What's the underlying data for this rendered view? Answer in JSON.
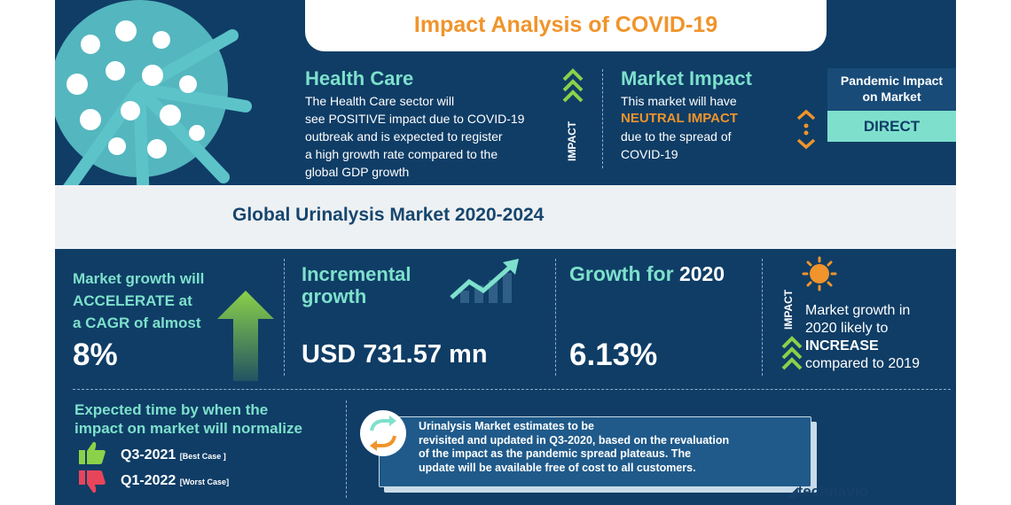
{
  "header": {
    "title": "Impact Analysis of COVID-19"
  },
  "health_care": {
    "title": "Health Care",
    "lines": [
      "The Health Care sector will",
      "see POSITIVE impact due to COVID-19",
      "outbreak and is expected to register",
      "a high growth rate compared to the",
      "global GDP growth"
    ]
  },
  "impact_label": "IMPACT",
  "market_impact": {
    "title": "Market Impact",
    "line1": "This market will have",
    "highlight": "NEUTRAL IMPACT",
    "line3": "due to the spread of",
    "line4": "COVID-19"
  },
  "pandemic": {
    "title_line1": "Pandemic Impact",
    "title_line2": "on Market",
    "value": "DIRECT"
  },
  "band": {
    "title": "Global Urinalysis Market 2020-2024"
  },
  "cagr": {
    "line1": "Market growth will",
    "line2": "ACCELERATE at",
    "line3": "a CAGR of almost",
    "value": "8%"
  },
  "incremental": {
    "line1": "Incremental",
    "line2": "growth",
    "value": "USD 731.57 mn"
  },
  "growth2020": {
    "label": "Growth for ",
    "year": "2020",
    "value": "6.13%"
  },
  "impact2": {
    "label": "IMPACT",
    "line1": "Market growth in",
    "line2": "2020 likely to",
    "highlight": "INCREASE",
    "line4": "compared to 2019"
  },
  "normalize": {
    "line1": "Expected time by when the",
    "line2": "impact on market will normalize",
    "best": {
      "quarter": "Q3-2021",
      "tag": "[Best Case ]"
    },
    "worst": {
      "quarter": "Q1-2022",
      "tag": "[Worst Case]"
    }
  },
  "note": {
    "lines": [
      "Urinalysis Market estimates to be",
      "revisited and updated in Q3-2020, based on the revaluation",
      "of the impact as the pandemic spread plateaus. The",
      "update will be available free of cost to all customers."
    ]
  },
  "brand": {
    "name": "technavio"
  },
  "colors": {
    "navy": "#0f3d66",
    "teal": "#7ee0cc",
    "orange": "#f0942b",
    "green": "#8bd14a",
    "red": "#e8455b"
  }
}
